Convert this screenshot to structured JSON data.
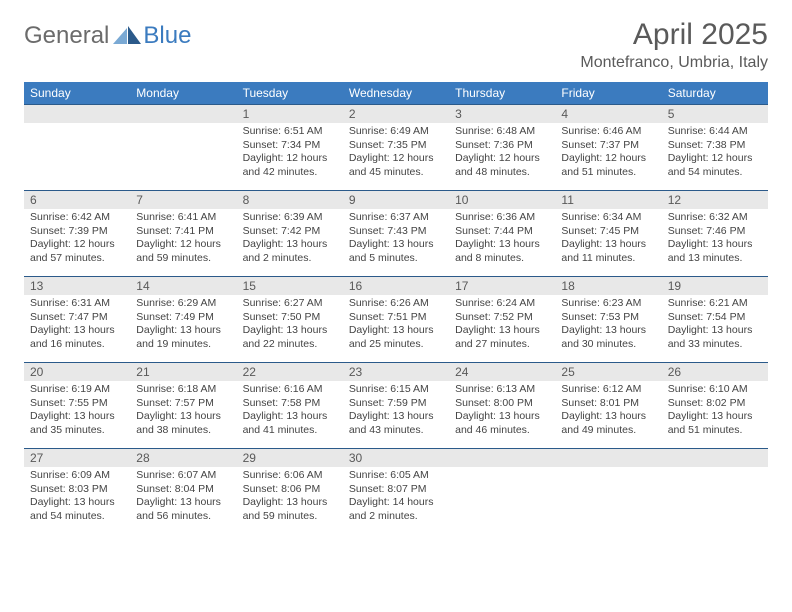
{
  "logo": {
    "text_general": "General",
    "text_blue": "Blue",
    "icon_color_light": "#7aa9d4",
    "icon_color_dark": "#2b5a8a"
  },
  "header": {
    "month_title": "April 2025",
    "location": "Montefranco, Umbria, Italy"
  },
  "colors": {
    "header_bg": "#3b7bbf",
    "header_text": "#ffffff",
    "cell_border": "#2b5a8a",
    "daynum_bg": "#e8e8e8",
    "daynum_text": "#595959",
    "body_text": "#444444",
    "page_bg": "#ffffff",
    "title_text": "#5a5a5a",
    "logo_gray": "#6b6b6b",
    "logo_blue": "#3b7bbf"
  },
  "typography": {
    "title_fontsize": 30,
    "location_fontsize": 16,
    "weekday_fontsize": 12,
    "daynum_fontsize": 12,
    "body_fontsize": 10.5,
    "font_family": "Arial"
  },
  "weekdays": [
    "Sunday",
    "Monday",
    "Tuesday",
    "Wednesday",
    "Thursday",
    "Friday",
    "Saturday"
  ],
  "weeks": [
    [
      null,
      null,
      {
        "n": "1",
        "sr": "Sunrise: 6:51 AM",
        "ss": "Sunset: 7:34 PM",
        "dl": "Daylight: 12 hours and 42 minutes."
      },
      {
        "n": "2",
        "sr": "Sunrise: 6:49 AM",
        "ss": "Sunset: 7:35 PM",
        "dl": "Daylight: 12 hours and 45 minutes."
      },
      {
        "n": "3",
        "sr": "Sunrise: 6:48 AM",
        "ss": "Sunset: 7:36 PM",
        "dl": "Daylight: 12 hours and 48 minutes."
      },
      {
        "n": "4",
        "sr": "Sunrise: 6:46 AM",
        "ss": "Sunset: 7:37 PM",
        "dl": "Daylight: 12 hours and 51 minutes."
      },
      {
        "n": "5",
        "sr": "Sunrise: 6:44 AM",
        "ss": "Sunset: 7:38 PM",
        "dl": "Daylight: 12 hours and 54 minutes."
      }
    ],
    [
      {
        "n": "6",
        "sr": "Sunrise: 6:42 AM",
        "ss": "Sunset: 7:39 PM",
        "dl": "Daylight: 12 hours and 57 minutes."
      },
      {
        "n": "7",
        "sr": "Sunrise: 6:41 AM",
        "ss": "Sunset: 7:41 PM",
        "dl": "Daylight: 12 hours and 59 minutes."
      },
      {
        "n": "8",
        "sr": "Sunrise: 6:39 AM",
        "ss": "Sunset: 7:42 PM",
        "dl": "Daylight: 13 hours and 2 minutes."
      },
      {
        "n": "9",
        "sr": "Sunrise: 6:37 AM",
        "ss": "Sunset: 7:43 PM",
        "dl": "Daylight: 13 hours and 5 minutes."
      },
      {
        "n": "10",
        "sr": "Sunrise: 6:36 AM",
        "ss": "Sunset: 7:44 PM",
        "dl": "Daylight: 13 hours and 8 minutes."
      },
      {
        "n": "11",
        "sr": "Sunrise: 6:34 AM",
        "ss": "Sunset: 7:45 PM",
        "dl": "Daylight: 13 hours and 11 minutes."
      },
      {
        "n": "12",
        "sr": "Sunrise: 6:32 AM",
        "ss": "Sunset: 7:46 PM",
        "dl": "Daylight: 13 hours and 13 minutes."
      }
    ],
    [
      {
        "n": "13",
        "sr": "Sunrise: 6:31 AM",
        "ss": "Sunset: 7:47 PM",
        "dl": "Daylight: 13 hours and 16 minutes."
      },
      {
        "n": "14",
        "sr": "Sunrise: 6:29 AM",
        "ss": "Sunset: 7:49 PM",
        "dl": "Daylight: 13 hours and 19 minutes."
      },
      {
        "n": "15",
        "sr": "Sunrise: 6:27 AM",
        "ss": "Sunset: 7:50 PM",
        "dl": "Daylight: 13 hours and 22 minutes."
      },
      {
        "n": "16",
        "sr": "Sunrise: 6:26 AM",
        "ss": "Sunset: 7:51 PM",
        "dl": "Daylight: 13 hours and 25 minutes."
      },
      {
        "n": "17",
        "sr": "Sunrise: 6:24 AM",
        "ss": "Sunset: 7:52 PM",
        "dl": "Daylight: 13 hours and 27 minutes."
      },
      {
        "n": "18",
        "sr": "Sunrise: 6:23 AM",
        "ss": "Sunset: 7:53 PM",
        "dl": "Daylight: 13 hours and 30 minutes."
      },
      {
        "n": "19",
        "sr": "Sunrise: 6:21 AM",
        "ss": "Sunset: 7:54 PM",
        "dl": "Daylight: 13 hours and 33 minutes."
      }
    ],
    [
      {
        "n": "20",
        "sr": "Sunrise: 6:19 AM",
        "ss": "Sunset: 7:55 PM",
        "dl": "Daylight: 13 hours and 35 minutes."
      },
      {
        "n": "21",
        "sr": "Sunrise: 6:18 AM",
        "ss": "Sunset: 7:57 PM",
        "dl": "Daylight: 13 hours and 38 minutes."
      },
      {
        "n": "22",
        "sr": "Sunrise: 6:16 AM",
        "ss": "Sunset: 7:58 PM",
        "dl": "Daylight: 13 hours and 41 minutes."
      },
      {
        "n": "23",
        "sr": "Sunrise: 6:15 AM",
        "ss": "Sunset: 7:59 PM",
        "dl": "Daylight: 13 hours and 43 minutes."
      },
      {
        "n": "24",
        "sr": "Sunrise: 6:13 AM",
        "ss": "Sunset: 8:00 PM",
        "dl": "Daylight: 13 hours and 46 minutes."
      },
      {
        "n": "25",
        "sr": "Sunrise: 6:12 AM",
        "ss": "Sunset: 8:01 PM",
        "dl": "Daylight: 13 hours and 49 minutes."
      },
      {
        "n": "26",
        "sr": "Sunrise: 6:10 AM",
        "ss": "Sunset: 8:02 PM",
        "dl": "Daylight: 13 hours and 51 minutes."
      }
    ],
    [
      {
        "n": "27",
        "sr": "Sunrise: 6:09 AM",
        "ss": "Sunset: 8:03 PM",
        "dl": "Daylight: 13 hours and 54 minutes."
      },
      {
        "n": "28",
        "sr": "Sunrise: 6:07 AM",
        "ss": "Sunset: 8:04 PM",
        "dl": "Daylight: 13 hours and 56 minutes."
      },
      {
        "n": "29",
        "sr": "Sunrise: 6:06 AM",
        "ss": "Sunset: 8:06 PM",
        "dl": "Daylight: 13 hours and 59 minutes."
      },
      {
        "n": "30",
        "sr": "Sunrise: 6:05 AM",
        "ss": "Sunset: 8:07 PM",
        "dl": "Daylight: 14 hours and 2 minutes."
      },
      null,
      null,
      null
    ]
  ]
}
